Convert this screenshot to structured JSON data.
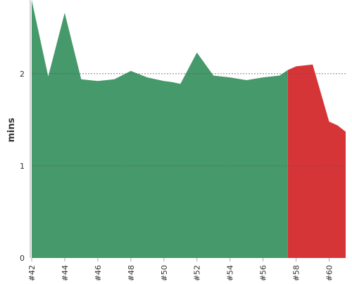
{
  "chart_data": {
    "type": "area",
    "title": "",
    "xlabel": "",
    "ylabel": "mins",
    "ylim": [
      0,
      2.8
    ],
    "xlim": [
      42,
      61
    ],
    "y_ticks": [
      0,
      1,
      2
    ],
    "x_ticks": [
      42,
      44,
      46,
      48,
      50,
      52,
      54,
      56,
      58,
      60
    ],
    "x_tick_prefix": "#",
    "gridlines": "dotted horizontal at 1 and 2",
    "colors": {
      "good": "#46996b",
      "bad": "#d63537",
      "grid": "#555555",
      "axis": "#aaaaaa"
    },
    "series": [
      {
        "x": [
          42,
          43,
          44,
          45,
          46,
          47,
          48,
          49,
          50,
          50.5,
          51,
          52,
          53,
          54,
          55,
          56,
          57,
          57.5,
          58,
          59,
          60,
          60.5,
          61
        ],
        "y": [
          2.85,
          1.97,
          2.66,
          1.94,
          1.92,
          1.94,
          2.03,
          1.96,
          1.92,
          1.91,
          1.89,
          2.23,
          1.98,
          1.96,
          1.93,
          1.96,
          1.98,
          2.04,
          2.08,
          2.1,
          1.48,
          1.44,
          1.37
        ],
        "split_x": 57.5
      }
    ]
  }
}
